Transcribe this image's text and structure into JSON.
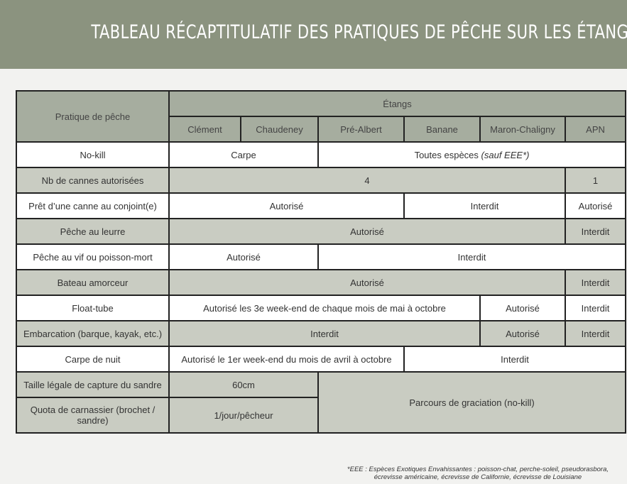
{
  "title": "Tableau récaptitulatif des pratiques de pêche sur les étangs",
  "table": {
    "corner_header": "Pratique de pêche",
    "group_header": "Étangs",
    "ponds": [
      "Clément",
      "Chaudeney",
      "Pré-Albert",
      "Banane",
      "Maron-Chaligny",
      "APN"
    ],
    "rows": {
      "no_kill": {
        "label": "No-kill",
        "a": "Carpe",
        "b": "Toutes espèces",
        "b_note": "(sauf EEE*)"
      },
      "cannes": {
        "label": "Nb de cannes autorisées",
        "a": "4",
        "b": "1"
      },
      "pret": {
        "label": "Prêt d’une canne au conjoint(e)",
        "a": "Autorisé",
        "b": "Interdit",
        "c": "Autorisé"
      },
      "leurre": {
        "label": "Pêche au leurre",
        "a": "Autorisé",
        "b": "Interdit"
      },
      "vif": {
        "label": "Pêche au vif ou poisson-mort",
        "a": "Autorisé",
        "b": "Interdit"
      },
      "bateau": {
        "label": "Bateau amorceur",
        "a": "Autorisé",
        "b": "Interdit"
      },
      "float": {
        "label": "Float-tube",
        "a": "Autorisé les 3e week-end de chaque mois de mai à octobre",
        "b": "Autorisé",
        "c": "Interdit"
      },
      "embarcation": {
        "label": "Embarcation (barque, kayak, etc.)",
        "a": "Interdit",
        "b": "Autorisé",
        "c": "Interdit"
      },
      "nuit": {
        "label": "Carpe de nuit",
        "a": "Autorisé le 1er week-end du mois de avril à octobre",
        "b": "Interdit"
      },
      "taille": {
        "label": "Taille légale de capture du sandre",
        "a": "60cm"
      },
      "parcours": "Parcours de graciation (no-kill)",
      "quota": {
        "label": "Quota de carnassier (brochet / sandre)",
        "a": "1/jour/pêcheur"
      }
    }
  },
  "footnote": {
    "line1": "*EEE : Espèces Exotiques Envahissantes : poisson-chat, perche-soleil, pseudorasbora,",
    "line2": "écrevisse américaine, écrevisse de Californie, écrevisse de Louisiane"
  }
}
